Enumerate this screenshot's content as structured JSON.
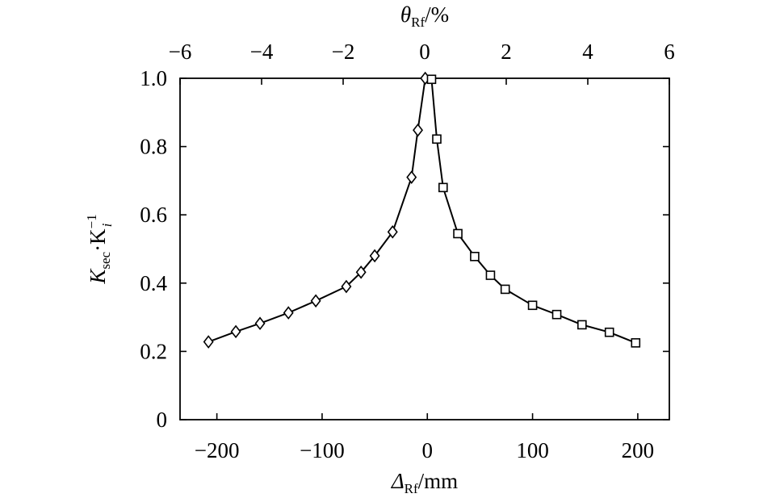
{
  "chart_data": {
    "type": "scatter",
    "xlabel": {
      "symbol": "Δ",
      "subscript": "Rf",
      "unit": "/mm"
    },
    "x2label": {
      "symbol": "θ",
      "subscript": "Rf",
      "unit": "/%"
    },
    "ylabel": {
      "symbol": "K",
      "subscript": "sec",
      "operator": "·",
      "symbol2": "K",
      "superscript2": "−1",
      "subscript2": "i"
    },
    "xlim": [
      -235,
      230
    ],
    "ylim": [
      0,
      1.0
    ],
    "x2lim": [
      -6,
      6
    ],
    "xticks": [
      -200,
      -100,
      0,
      100,
      200
    ],
    "xtick_labels": [
      "−200",
      "−100",
      "0",
      "100",
      "200"
    ],
    "x2ticks": [
      -6,
      -4,
      -2,
      0,
      2,
      4,
      6
    ],
    "x2tick_labels": [
      "−6",
      "−4",
      "−2",
      "0",
      "2",
      "4",
      "6"
    ],
    "yticks": [
      0,
      0.2,
      0.4,
      0.6,
      0.8,
      1.0
    ],
    "ytick_labels": [
      "0",
      "0.2",
      "0.4",
      "0.6",
      "0.8",
      "1.0"
    ],
    "grid": false,
    "series": [
      {
        "marker": "diamond",
        "x": [
          -208,
          -182,
          -159,
          -132,
          -106,
          -77,
          -63,
          -50,
          -33,
          -15,
          -9,
          -2
        ],
        "y": [
          0.228,
          0.258,
          0.282,
          0.313,
          0.348,
          0.39,
          0.432,
          0.48,
          0.55,
          0.71,
          0.848,
          1.0
        ]
      },
      {
        "marker": "square",
        "x": [
          4,
          9,
          15,
          29,
          45,
          60,
          74,
          100,
          123,
          147,
          173,
          198
        ],
        "y": [
          0.997,
          0.822,
          0.68,
          0.545,
          0.478,
          0.423,
          0.382,
          0.335,
          0.308,
          0.278,
          0.256,
          0.225
        ]
      }
    ]
  }
}
